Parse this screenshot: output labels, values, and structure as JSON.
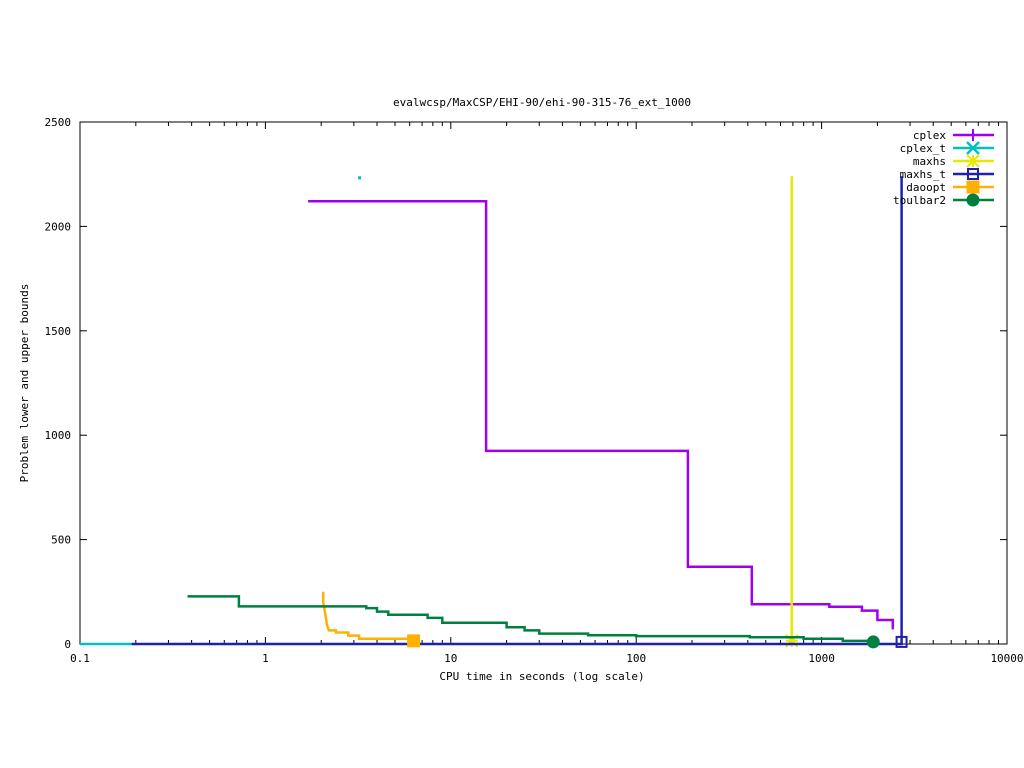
{
  "chart_data": {
    "type": "line",
    "title": "evalwcsp/MaxCSP/EHI-90/ehi-90-315-76_ext_1000",
    "xlabel": "CPU time in seconds (log scale)",
    "ylabel": "Problem lower and upper bounds",
    "xscale": "log",
    "xlim": [
      0.1,
      10000
    ],
    "ylim": [
      0,
      2500
    ],
    "xticks": [
      {
        "value": 0.1,
        "label": "0.1"
      },
      {
        "value": 1,
        "label": "1"
      },
      {
        "value": 10,
        "label": "10"
      },
      {
        "value": 100,
        "label": "100"
      },
      {
        "value": 1000,
        "label": "1000"
      },
      {
        "value": 10000,
        "label": "10000"
      }
    ],
    "yticks": [
      {
        "value": 0,
        "label": "0"
      },
      {
        "value": 500,
        "label": "500"
      },
      {
        "value": 1000,
        "label": "1000"
      },
      {
        "value": 1500,
        "label": "1500"
      },
      {
        "value": 2000,
        "label": "2000"
      },
      {
        "value": 2500,
        "label": "2500"
      }
    ],
    "grid": false,
    "legend_position": "top-right",
    "series": [
      {
        "name": "cplex",
        "color": "#a000f0",
        "marker": "plus",
        "points": [
          [
            1.7,
            2120
          ],
          [
            15.5,
            2120
          ],
          [
            15.5,
            925
          ],
          [
            190,
            925
          ],
          [
            190,
            370
          ],
          [
            420,
            370
          ],
          [
            420,
            190
          ],
          [
            1100,
            190
          ],
          [
            1100,
            178
          ],
          [
            1650,
            178
          ],
          [
            1650,
            160
          ],
          [
            2000,
            160
          ],
          [
            2000,
            115
          ],
          [
            2420,
            115
          ],
          [
            2420,
            70
          ]
        ],
        "markers": []
      },
      {
        "name": "cplex_t",
        "color": "#00c0c0",
        "marker": "x",
        "points": [
          [
            0.1,
            0
          ],
          [
            0.19,
            0
          ]
        ],
        "extra_points": [
          [
            3.2,
            2235
          ]
        ],
        "markers": []
      },
      {
        "name": "maxhs",
        "color": "#e8e800",
        "marker": "star",
        "points": [
          [
            690,
            2240
          ],
          [
            690,
            15
          ]
        ],
        "markers": [
          [
            690,
            15
          ]
        ]
      },
      {
        "name": "maxhs_t",
        "color": "#2020b0",
        "marker": "open-square",
        "points": [
          [
            0.19,
            0
          ],
          [
            2700,
            0
          ],
          [
            2700,
            2240
          ]
        ],
        "markers": [
          [
            2700,
            10
          ]
        ]
      },
      {
        "name": "daoopt",
        "color": "#ffb000",
        "marker": "filled-square",
        "points": [
          [
            2.05,
            250
          ],
          [
            2.05,
            200
          ],
          [
            2.1,
            150
          ],
          [
            2.15,
            90
          ],
          [
            2.2,
            65
          ],
          [
            2.4,
            65
          ],
          [
            2.4,
            55
          ],
          [
            2.8,
            55
          ],
          [
            2.8,
            40
          ],
          [
            3.2,
            40
          ],
          [
            3.2,
            25
          ],
          [
            6.3,
            25
          ],
          [
            6.3,
            15
          ]
        ],
        "markers": [
          [
            6.3,
            15
          ]
        ]
      },
      {
        "name": "toulbar2",
        "color": "#008040",
        "marker": "filled-circle",
        "points": [
          [
            0.38,
            228
          ],
          [
            0.72,
            228
          ],
          [
            0.72,
            180
          ],
          [
            3.5,
            180
          ],
          [
            3.5,
            172
          ],
          [
            4.0,
            172
          ],
          [
            4.0,
            155
          ],
          [
            4.6,
            155
          ],
          [
            4.6,
            140
          ],
          [
            7.5,
            140
          ],
          [
            7.5,
            125
          ],
          [
            9.0,
            125
          ],
          [
            9.0,
            102
          ],
          [
            20,
            102
          ],
          [
            20,
            80
          ],
          [
            25,
            80
          ],
          [
            25,
            65
          ],
          [
            30,
            65
          ],
          [
            30,
            50
          ],
          [
            55,
            50
          ],
          [
            55,
            42
          ],
          [
            100,
            42
          ],
          [
            100,
            38
          ],
          [
            410,
            38
          ],
          [
            410,
            32
          ],
          [
            800,
            32
          ],
          [
            800,
            25
          ],
          [
            1300,
            25
          ],
          [
            1300,
            15
          ],
          [
            1900,
            15
          ],
          [
            1900,
            10
          ]
        ],
        "markers": [
          [
            1900,
            10
          ]
        ]
      }
    ]
  }
}
